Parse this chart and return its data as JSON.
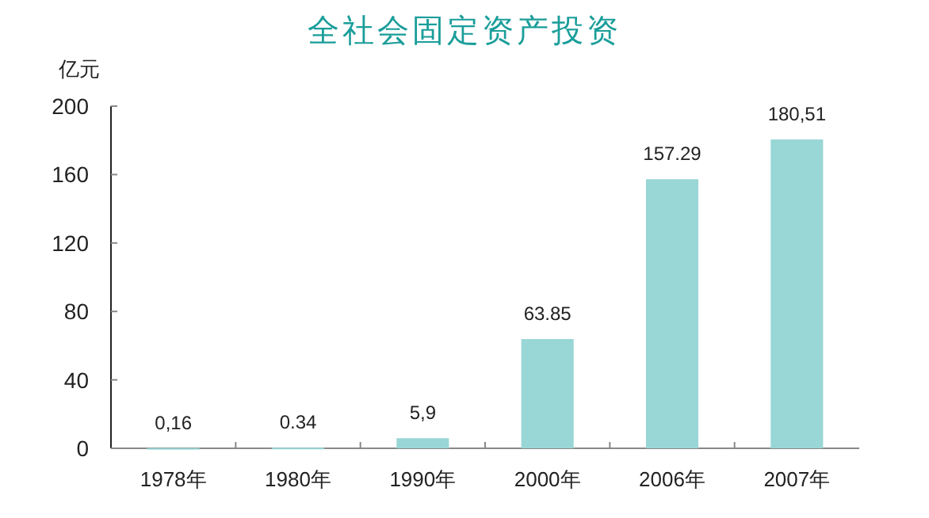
{
  "chart_data": {
    "type": "bar",
    "title": "全社会固定资产投资",
    "ylabel": "亿元",
    "categories": [
      "1978年",
      "1980年",
      "1990年",
      "2000年",
      "2006年",
      "2007年"
    ],
    "values": [
      0.16,
      0.34,
      5.9,
      63.85,
      157.29,
      180.51
    ],
    "value_labels": [
      "0,16",
      "0.34",
      "5,9",
      "63.85",
      "157.29",
      "180,51"
    ],
    "color": "#99d6d6",
    "ylim": [
      0,
      200
    ],
    "yticks": [
      0,
      40,
      80,
      120,
      160,
      200
    ],
    "grid": false
  }
}
